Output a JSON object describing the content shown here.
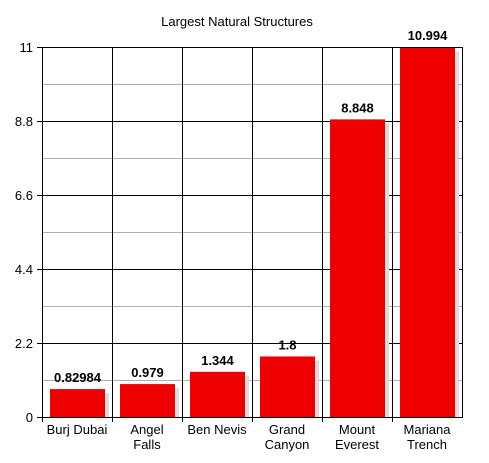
{
  "chart_data": {
    "type": "bar",
    "title": "Largest Natural Structures",
    "xlabel": "",
    "ylabel": "",
    "categories": [
      [
        "Burj Dubai"
      ],
      [
        "Angel",
        "Falls"
      ],
      [
        "Ben Nevis"
      ],
      [
        "Grand",
        "Canyon"
      ],
      [
        "Mount",
        "Everest"
      ],
      [
        "Mariana",
        "Trench"
      ]
    ],
    "values": [
      0.82984,
      0.979,
      1.344,
      1.8,
      8.848,
      10.994
    ],
    "value_labels": [
      "0.82984",
      "0.979",
      "1.344",
      "1.8",
      "8.848",
      "10.994"
    ],
    "ylim": [
      0,
      11
    ],
    "y_ticks": [
      {
        "value": 0,
        "label": "0"
      },
      {
        "value": 2.2,
        "label": "2.2"
      },
      {
        "value": 4.4,
        "label": "4.4"
      },
      {
        "value": 6.6,
        "label": "6.6"
      },
      {
        "value": 8.8,
        "label": "8.8"
      },
      {
        "value": 11,
        "label": "11"
      }
    ],
    "minor_grid_step": 1.1,
    "grid": true,
    "legend": "none",
    "colors": {
      "bar": "#ee0000",
      "bar_shadow": "#dcdcdc",
      "grid_major": "#000000",
      "grid_minor": "#b0b0b0",
      "axis": "#000000"
    }
  }
}
